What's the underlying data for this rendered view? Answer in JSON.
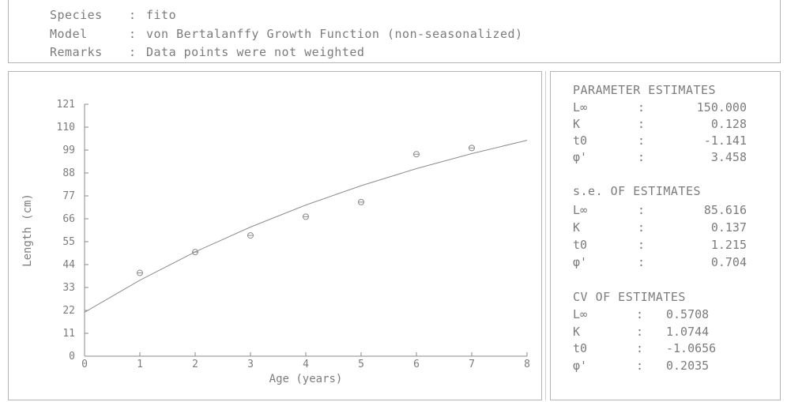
{
  "header": {
    "species_label": "Species",
    "species_value": "fito",
    "model_label": "Model",
    "model_value": "von Bertalanffy Growth Function (non-seasonalized)",
    "remarks_label": "Remarks",
    "remarks_value": "Data points were not weighted"
  },
  "chart_data": {
    "type": "scatter",
    "title": "",
    "xlabel": "Age  (years)",
    "ylabel": "Length (cm)",
    "xlim": [
      0,
      8
    ],
    "ylim": [
      0,
      121
    ],
    "x_ticks": [
      "0",
      "1",
      "2",
      "3",
      "4",
      "5",
      "6",
      "7",
      "8"
    ],
    "y_ticks": [
      "0",
      "11",
      "22",
      "33",
      "44",
      "55",
      "66",
      "77",
      "88",
      "99",
      "110",
      "121"
    ],
    "series": [
      {
        "type": "scatter",
        "points": [
          [
            1,
            40
          ],
          [
            2,
            50
          ],
          [
            3,
            58
          ],
          [
            4,
            67
          ],
          [
            5,
            74
          ],
          [
            6,
            97
          ],
          [
            7,
            100
          ]
        ]
      },
      {
        "type": "line",
        "points": [
          [
            0,
            21.1
          ],
          [
            1,
            36.5
          ],
          [
            2,
            50.1
          ],
          [
            3,
            62.0
          ],
          [
            4,
            72.6
          ],
          [
            5,
            81.9
          ],
          [
            6,
            90.1
          ],
          [
            7,
            97.3
          ],
          [
            8,
            103.7
          ]
        ]
      }
    ]
  },
  "stats": {
    "param_title": "PARAMETER ESTIMATES",
    "param_rows": [
      {
        "name": "L∞",
        "colon": ":",
        "value": "150.000"
      },
      {
        "name": "K",
        "colon": ":",
        "value": "0.128"
      },
      {
        "name": "t0",
        "colon": ":",
        "value": "-1.141"
      },
      {
        "name": "φ'",
        "colon": ":",
        "value": "3.458"
      }
    ],
    "se_title": "s.e. OF ESTIMATES",
    "se_rows": [
      {
        "name": "L∞",
        "colon": ":",
        "value": "85.616"
      },
      {
        "name": "K",
        "colon": ":",
        "value": "0.137"
      },
      {
        "name": "t0",
        "colon": ":",
        "value": "1.215"
      },
      {
        "name": "φ'",
        "colon": ":",
        "value": "0.704"
      }
    ],
    "cv_title": "CV OF ESTIMATES",
    "cv_rows": [
      {
        "name": "L∞",
        "colon": ":",
        "value": "0.5708"
      },
      {
        "name": "K",
        "colon": ":",
        "value": "1.0744"
      },
      {
        "name": "t0",
        "colon": ":",
        "value": "-1.0656"
      },
      {
        "name": "φ'",
        "colon": ":",
        "value": "0.2035"
      }
    ]
  }
}
